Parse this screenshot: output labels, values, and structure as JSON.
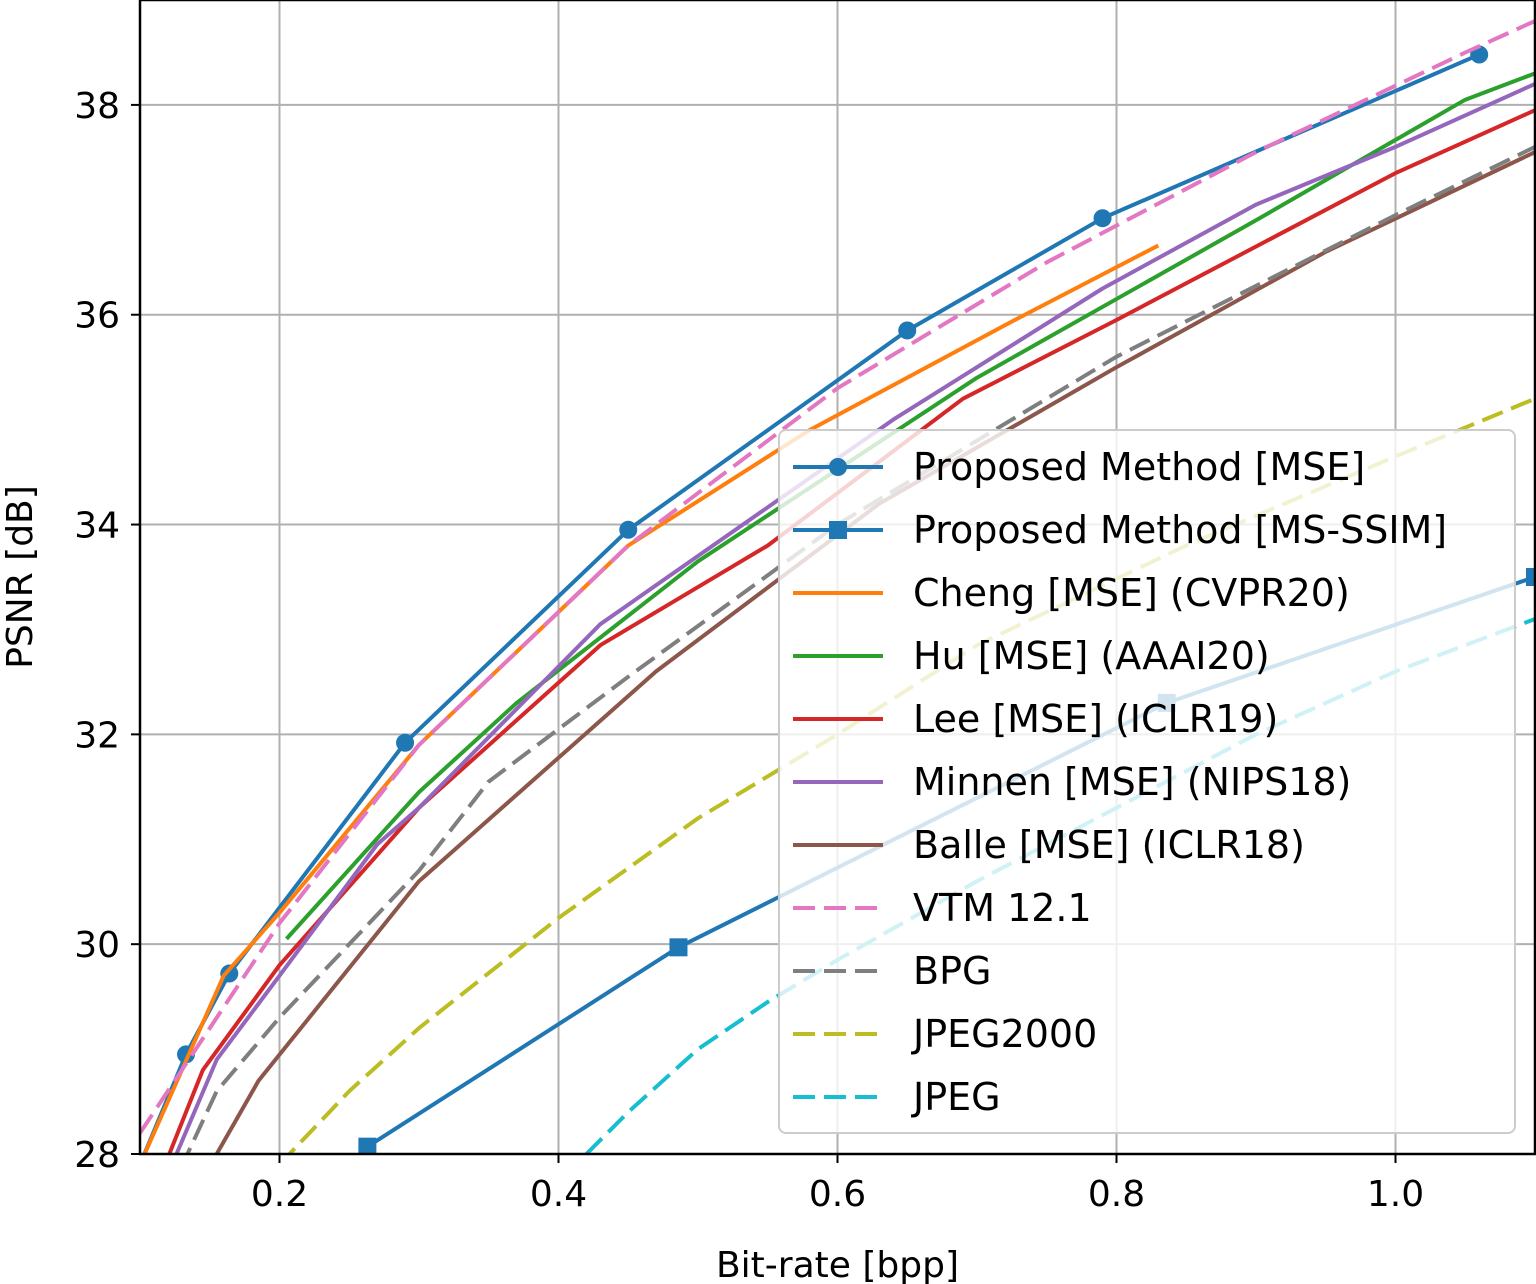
{
  "chart_data": {
    "type": "line",
    "title": "",
    "xlabel": "Bit-rate [bpp]",
    "ylabel": "PSNR [dB]",
    "xlim": [
      0.1,
      1.1
    ],
    "ylim": [
      28,
      39
    ],
    "xticks": [
      0.2,
      0.4,
      0.6,
      0.8,
      1.0
    ],
    "xtick_labels": [
      "0.2",
      "0.4",
      "0.6",
      "0.8",
      "1.0"
    ],
    "yticks": [
      28,
      30,
      32,
      34,
      36,
      38
    ],
    "ytick_labels": [
      "28",
      "30",
      "32",
      "34",
      "36",
      "38"
    ],
    "grid": true,
    "legend_position": "lower-right",
    "series": [
      {
        "name": "Proposed Method [MSE]",
        "color": "#1f77b4",
        "dash": "solid",
        "marker": "circle",
        "x": [
          0.1,
          0.133,
          0.164,
          0.29,
          0.45,
          0.65,
          0.79,
          1.06
        ],
        "y": [
          27.9,
          28.95,
          29.72,
          31.92,
          33.95,
          35.85,
          36.92,
          38.48
        ]
      },
      {
        "name": "Proposed Method [MS-SSIM]",
        "color": "#1f77b4",
        "dash": "solid",
        "marker": "square",
        "x": [
          0.263,
          0.486,
          0.836,
          1.1
        ],
        "y": [
          28.07,
          29.97,
          32.3,
          33.5
        ]
      },
      {
        "name": "Cheng [MSE] (CVPR20)",
        "color": "#ff7f0e",
        "dash": "solid",
        "marker": "none",
        "x": [
          0.1,
          0.16,
          0.2,
          0.3,
          0.45,
          0.58,
          0.72,
          0.83
        ],
        "y": [
          27.9,
          29.7,
          30.3,
          31.9,
          33.8,
          34.9,
          35.9,
          36.66
        ]
      },
      {
        "name": "Hu [MSE] (AAAI20)",
        "color": "#2ca02c",
        "dash": "solid",
        "marker": "none",
        "x": [
          0.205,
          0.3,
          0.37,
          0.5,
          0.7,
          0.9,
          1.05,
          1.1
        ],
        "y": [
          30.05,
          31.45,
          32.3,
          33.65,
          35.4,
          36.9,
          38.05,
          38.3
        ]
      },
      {
        "name": "Lee [MSE] (ICLR19)",
        "color": "#d62728",
        "dash": "solid",
        "marker": "none",
        "x": [
          0.115,
          0.145,
          0.2,
          0.3,
          0.43,
          0.55,
          0.69,
          0.8,
          1.0,
          1.1
        ],
        "y": [
          27.8,
          28.8,
          29.8,
          31.3,
          32.85,
          33.8,
          35.2,
          35.95,
          37.35,
          37.95
        ]
      },
      {
        "name": "Minnen [MSE] (NIPS18)",
        "color": "#9467bd",
        "dash": "solid",
        "marker": "none",
        "x": [
          0.115,
          0.155,
          0.2,
          0.27,
          0.3,
          0.43,
          0.64,
          0.79,
          0.9,
          1.0,
          1.1
        ],
        "y": [
          27.65,
          28.9,
          29.7,
          30.95,
          31.3,
          33.05,
          35.0,
          36.25,
          37.05,
          37.6,
          38.2
        ]
      },
      {
        "name": "Balle [MSE] (ICLR18)",
        "color": "#8c564b",
        "dash": "solid",
        "marker": "none",
        "x": [
          0.125,
          0.155,
          0.185,
          0.3,
          0.47,
          0.63,
          0.8,
          0.95,
          1.1
        ],
        "y": [
          27.2,
          28.0,
          28.7,
          30.6,
          32.6,
          34.2,
          35.5,
          36.6,
          37.55
        ]
      },
      {
        "name": "VTM 12.1",
        "color": "#e377c2",
        "dash": "dashed",
        "marker": "none",
        "x": [
          0.1,
          0.15,
          0.2,
          0.3,
          0.45,
          0.6,
          0.75,
          0.9,
          1.05,
          1.1
        ],
        "y": [
          28.2,
          29.2,
          30.2,
          31.9,
          33.8,
          35.3,
          36.5,
          37.55,
          38.5,
          38.8
        ]
      },
      {
        "name": "BPG",
        "color": "#7f7f7f",
        "dash": "dashed",
        "marker": "none",
        "x": [
          0.12,
          0.155,
          0.2,
          0.3,
          0.35,
          0.45,
          0.6,
          0.8,
          1.0,
          1.1
        ],
        "y": [
          27.6,
          28.6,
          29.3,
          30.7,
          31.55,
          32.55,
          34.0,
          35.6,
          36.95,
          37.6
        ]
      },
      {
        "name": "JPEG2000",
        "color": "#bcbd22",
        "dash": "dashed",
        "marker": "none",
        "x": [
          0.2,
          0.25,
          0.3,
          0.4,
          0.5,
          0.6,
          0.7,
          0.85,
          1.0,
          1.1
        ],
        "y": [
          27.9,
          28.6,
          29.2,
          30.25,
          31.2,
          32.0,
          32.85,
          33.8,
          34.65,
          35.2
        ]
      },
      {
        "name": "JPEG",
        "color": "#17becf",
        "dash": "dashed",
        "marker": "none",
        "x": [
          0.42,
          0.45,
          0.5,
          0.55,
          0.6,
          0.7,
          0.8,
          0.9,
          1.0,
          1.1
        ],
        "y": [
          28.0,
          28.4,
          29.0,
          29.45,
          29.85,
          30.6,
          31.3,
          32.0,
          32.6,
          33.1
        ]
      }
    ]
  }
}
